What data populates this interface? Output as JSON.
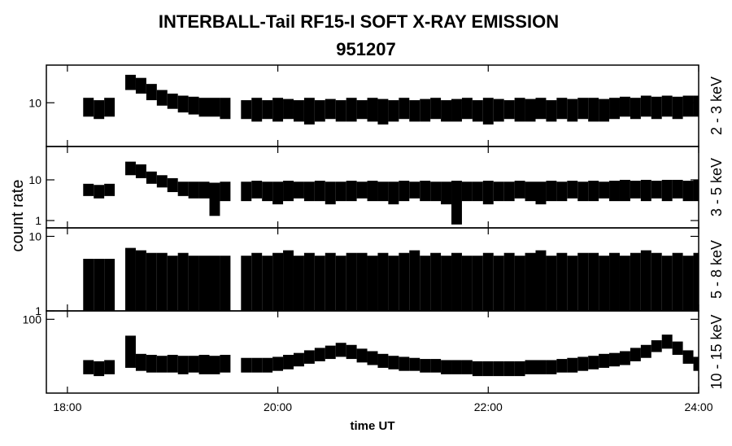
{
  "title": "INTERBALL-Tail RF15-I SOFT X-RAY EMISSION",
  "subtitle": "951207",
  "ylabel": "count rate",
  "xlabel": "time UT",
  "xlim": [
    17.8,
    24
  ],
  "xticks": [
    {
      "value": 18,
      "label": "18:00"
    },
    {
      "value": 20,
      "label": "20:00"
    },
    {
      "value": 22,
      "label": "22:00"
    },
    {
      "value": 24,
      "label": "24:00"
    }
  ],
  "chart_data": [
    {
      "type": "range",
      "ylabel": "2 - 3 keV",
      "log": true,
      "color": "#000000",
      "ylim": [
        2,
        40
      ],
      "yticks": [
        10
      ],
      "x": [
        18.2,
        18.3,
        18.4,
        18.5,
        18.6,
        18.7,
        18.8,
        18.9,
        19,
        19.1,
        19.2,
        19.3,
        19.4,
        19.5,
        19.6,
        19.7,
        19.8,
        19.9,
        20,
        20.1,
        20.2,
        20.3,
        20.4,
        20.5,
        20.6,
        20.7,
        20.8,
        20.9,
        21,
        21.1,
        21.2,
        21.3,
        21.4,
        21.5,
        21.6,
        21.7,
        21.8,
        21.9,
        22,
        22.1,
        22.2,
        22.3,
        22.4,
        22.5,
        22.6,
        22.7,
        22.8,
        22.9,
        23,
        23.1,
        23.2,
        23.3,
        23.4,
        23.5,
        23.6,
        23.7,
        23.8,
        23.9,
        24
      ],
      "low": [
        6,
        5.5,
        6,
        null,
        16,
        14,
        11,
        9,
        8,
        7,
        6.5,
        6,
        6,
        5.5,
        null,
        5.5,
        5,
        5.5,
        5,
        5.5,
        5,
        4.5,
        5,
        5.5,
        5,
        5,
        5.5,
        5,
        4.5,
        5,
        5.5,
        5,
        5,
        5.5,
        5,
        5,
        5.5,
        5,
        4.5,
        5,
        5.5,
        5,
        5,
        5.5,
        5,
        5.5,
        5,
        5.5,
        5,
        5,
        5.5,
        6,
        5.5,
        6,
        5.5,
        6,
        5.5,
        6,
        6
      ],
      "high": [
        12,
        11,
        12,
        null,
        28,
        25,
        20,
        16,
        14,
        13,
        12.5,
        12,
        12,
        12,
        null,
        11,
        12,
        11,
        12,
        11.5,
        11,
        12,
        11,
        11.5,
        11,
        12,
        11,
        12,
        11.5,
        11,
        12,
        11,
        11.5,
        12,
        11,
        11.5,
        12,
        11,
        12,
        11.5,
        11,
        12,
        11.5,
        12,
        11,
        12,
        11.5,
        12,
        12,
        11.5,
        12,
        12.5,
        12,
        13,
        12.5,
        13,
        12.5,
        13,
        13
      ]
    },
    {
      "type": "range",
      "ylabel": "3 - 5 keV",
      "log": true,
      "color": "#000000",
      "ylim": [
        0.66,
        66
      ],
      "yticks": [
        1,
        10
      ],
      "x": [
        18.2,
        18.3,
        18.4,
        18.5,
        18.6,
        18.7,
        18.8,
        18.9,
        19,
        19.1,
        19.2,
        19.3,
        19.4,
        19.5,
        19.6,
        19.7,
        19.8,
        19.9,
        20,
        20.1,
        20.2,
        20.3,
        20.4,
        20.5,
        20.6,
        20.7,
        20.8,
        20.9,
        21,
        21.1,
        21.2,
        21.3,
        21.4,
        21.5,
        21.6,
        21.7,
        21.8,
        21.9,
        22,
        22.1,
        22.2,
        22.3,
        22.4,
        22.5,
        22.6,
        22.7,
        22.8,
        22.9,
        23,
        23.1,
        23.2,
        23.3,
        23.4,
        23.5,
        23.6,
        23.7,
        23.8,
        23.9,
        24
      ],
      "low": [
        4,
        3.5,
        4,
        null,
        13,
        11,
        8,
        6.5,
        5,
        4,
        3.5,
        3.5,
        1.3,
        3,
        null,
        3,
        3.5,
        3,
        2.5,
        3,
        3.5,
        3,
        3,
        2.5,
        3,
        3,
        3.5,
        3,
        3,
        2.5,
        3,
        3.5,
        3,
        3,
        2.5,
        0.8,
        3,
        3,
        2.5,
        3,
        3,
        3.5,
        3,
        2.5,
        3,
        3,
        3.5,
        3,
        3,
        3.5,
        3,
        3,
        3.5,
        3,
        3.5,
        3,
        3.5,
        3,
        3
      ],
      "high": [
        8,
        7.5,
        8,
        null,
        28,
        24,
        16,
        13,
        11,
        9,
        9,
        9,
        8.5,
        9,
        null,
        9,
        9.5,
        9,
        9,
        9.5,
        9,
        9,
        9.5,
        9,
        9,
        9.5,
        9,
        9.5,
        9,
        9,
        9.5,
        9,
        9.5,
        9,
        9,
        9.5,
        9,
        9,
        9.5,
        9,
        9,
        9.5,
        9,
        9,
        9.5,
        9,
        9.5,
        9,
        9.5,
        9,
        9.5,
        10,
        9.5,
        10,
        9.5,
        10,
        10,
        9.5,
        10
      ]
    },
    {
      "type": "range",
      "ylabel": "5 - 8 keV",
      "log": true,
      "color": "#000000",
      "ylim": [
        1,
        13
      ],
      "yticks": [
        1,
        10
      ],
      "x": [
        18.2,
        18.3,
        18.4,
        18.5,
        18.6,
        18.7,
        18.8,
        18.9,
        19,
        19.1,
        19.2,
        19.3,
        19.4,
        19.5,
        19.6,
        19.7,
        19.8,
        19.9,
        20,
        20.1,
        20.2,
        20.3,
        20.4,
        20.5,
        20.6,
        20.7,
        20.8,
        20.9,
        21,
        21.1,
        21.2,
        21.3,
        21.4,
        21.5,
        21.6,
        21.7,
        21.8,
        21.9,
        22,
        22.1,
        22.2,
        22.3,
        22.4,
        22.5,
        22.6,
        22.7,
        22.8,
        22.9,
        23,
        23.1,
        23.2,
        23.3,
        23.4,
        23.5,
        23.6,
        23.7,
        23.8,
        23.9,
        24
      ],
      "low": [
        1,
        1,
        1,
        null,
        1,
        1,
        1,
        1,
        1,
        1,
        1,
        1,
        1,
        1,
        null,
        1,
        1,
        1,
        1,
        1,
        1,
        1,
        1,
        1,
        1,
        1,
        1,
        1,
        1,
        1,
        1,
        1,
        1,
        1,
        1,
        1,
        1,
        1,
        1,
        1,
        1,
        1,
        1,
        1,
        1,
        1,
        1,
        1,
        1,
        1,
        1,
        1,
        1,
        1,
        1,
        1,
        1,
        1,
        1
      ],
      "high": [
        5,
        5,
        5,
        null,
        7,
        6.5,
        6,
        6,
        5.5,
        6,
        5.5,
        5.5,
        5.5,
        5.5,
        null,
        5.5,
        6,
        5.5,
        6,
        6.5,
        5.5,
        6,
        5.5,
        6,
        5.5,
        6,
        6,
        5.5,
        6,
        5.5,
        6,
        6.5,
        5.5,
        6,
        5.5,
        6,
        5.5,
        5.5,
        6,
        5.5,
        6,
        5.5,
        6,
        6.5,
        5.5,
        6,
        5.5,
        6,
        6,
        5.5,
        6,
        5.5,
        6,
        6.5,
        6,
        5.5,
        6,
        5.5,
        6
      ]
    },
    {
      "type": "range",
      "ylabel": "10 - 15 keV",
      "log": true,
      "color": "#000000",
      "ylim": [
        10,
        130
      ],
      "yticks": [
        100
      ],
      "x": [
        18.2,
        18.3,
        18.4,
        18.5,
        18.6,
        18.7,
        18.8,
        18.9,
        19,
        19.1,
        19.2,
        19.3,
        19.4,
        19.5,
        19.6,
        19.7,
        19.8,
        19.9,
        20,
        20.1,
        20.2,
        20.3,
        20.4,
        20.5,
        20.6,
        20.7,
        20.8,
        20.9,
        21,
        21.1,
        21.2,
        21.3,
        21.4,
        21.5,
        21.6,
        21.7,
        21.8,
        21.9,
        22,
        22.1,
        22.2,
        22.3,
        22.4,
        22.5,
        22.6,
        22.7,
        22.8,
        22.9,
        23,
        23.1,
        23.2,
        23.3,
        23.4,
        23.5,
        23.6,
        23.7,
        23.8,
        23.9,
        24
      ],
      "low": [
        18,
        17,
        18,
        null,
        22,
        20,
        19,
        19,
        19,
        18,
        19,
        18,
        18,
        19,
        null,
        19,
        19,
        19,
        20,
        21,
        23,
        25,
        27,
        29,
        31,
        29,
        26,
        24,
        22,
        21,
        20,
        20,
        19,
        19,
        18,
        18,
        18,
        17,
        17,
        17,
        17,
        17,
        18,
        18,
        18,
        19,
        19,
        20,
        21,
        22,
        23,
        24,
        27,
        30,
        36,
        40,
        33,
        25,
        20
      ],
      "high": [
        28,
        27,
        28,
        null,
        60,
        34,
        33,
        32,
        33,
        32,
        32,
        33,
        32,
        33,
        null,
        30,
        30,
        30,
        31,
        33,
        35,
        38,
        41,
        44,
        48,
        45,
        40,
        37,
        34,
        32,
        31,
        30,
        29,
        29,
        28,
        28,
        28,
        27,
        27,
        27,
        27,
        27,
        28,
        28,
        28,
        29,
        30,
        31,
        32,
        34,
        35,
        37,
        41,
        45,
        52,
        62,
        50,
        38,
        31
      ]
    }
  ]
}
